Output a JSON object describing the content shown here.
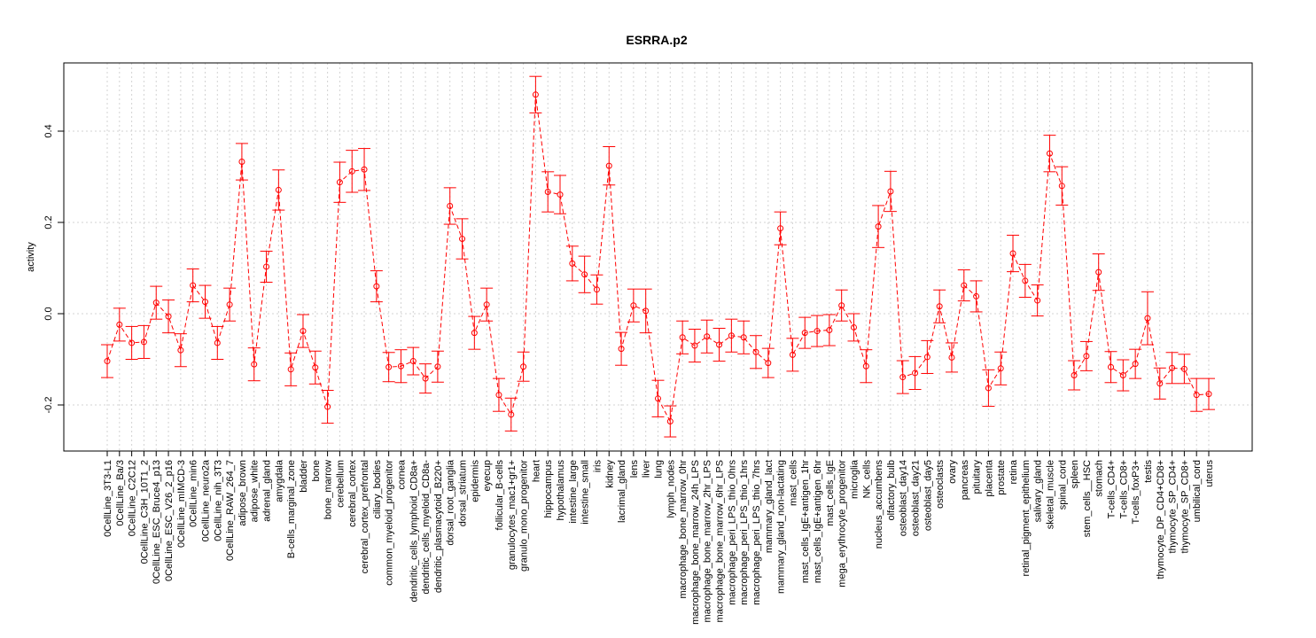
{
  "chart_data": {
    "type": "line",
    "title": "ESRRA.p2",
    "xlabel": "",
    "ylabel": "activity",
    "ylim": [
      -0.3,
      0.55
    ],
    "yticks": [
      -0.2,
      0.0,
      0.2,
      0.4
    ],
    "ytick_labels": [
      "-0.2",
      "0.0",
      "0.2",
      "0.4"
    ],
    "grid": true,
    "color": "#ff0000",
    "grid_color": "#d3d3d3",
    "categories": [
      "0CellLine_3T3-L1",
      "0CellLine_Ba/3",
      "0CellLine_C2C12",
      "0CellLine_C3H_10T1_2",
      "0CellLine_ESC_Bruce4_p13",
      "0CellLine_ESC_V26_2_p16",
      "0CellLine_mIMCD-3",
      "0CellLine_min6",
      "0CellLine_neuro2a",
      "0CellLine_nih_3T3",
      "0CellLine_RAW_264_7",
      "adipose_brown",
      "adipose_white",
      "adrenal_gland",
      "amygdala",
      "B-cells_marginal_zone",
      "bladder",
      "bone",
      "bone_marrow",
      "cerebellum",
      "cerebral_cortex",
      "cerebral_cortex_prefrontal",
      "ciliary_bodies",
      "common_myeloid_progenitor",
      "cornea",
      "dendritic_cells_lymphoid_CD8a+",
      "dendritic_cells_myeloid_CD8a-",
      "dendritic_plasmacytoid_B220+",
      "dorsal_root_ganglia",
      "dorsal_striatum",
      "epidermis",
      "eyecup",
      "follicular_B-cells",
      "granulocytes_mac1+gr1+",
      "granulo_mono_progenitor",
      "heart",
      "hippocampus",
      "hypothalamus",
      "intestine_large",
      "intestine_small",
      "iris",
      "kidney",
      "lacrimal_gland",
      "lens",
      "liver",
      "lung",
      "lymph_nodes",
      "macrophage_bone_marrow_0hr",
      "macrophage_bone_marrow_24h_LPS",
      "macrophage_bone_marrow_2hr_LPS",
      "macrophage_bone_marrow_6hr_LPS",
      "macrophage_peri_LPS_thio_0hrs",
      "macrophage_peri_LPS_thio_1hrs",
      "macrophage_peri_LPS_thio_7hrs",
      "mammary_gland_lact",
      "mammary_gland_non-lactating",
      "mast_cells",
      "mast_cells_IgE+antigen_1hr",
      "mast_cells_IgE+antigen_6hr",
      "mast_cells_IgE",
      "mega_erythrocyte_progenitor",
      "microglia",
      "NK_cells",
      "nucleus_accumbens",
      "olfactory_bulb",
      "osteoblast_day14",
      "osteoblast_day21",
      "osteoblast_day5",
      "osteoclasts",
      "ovary",
      "pancreas",
      "pituitary",
      "placenta",
      "prostate",
      "retina",
      "retinal_pigment_epithelium",
      "salivary_gland",
      "skeletal_muscle",
      "spinal_cord",
      "spleen",
      "stem_cells__HSC",
      "stomach",
      "T-cells_CD4+",
      "T-cells_CD8+",
      "T-cells_foxP3+",
      "testis",
      "thymocyte_DP_CD4+CD8+",
      "thymocyte_SP_CD4+",
      "thymocyte_SP_CD8+",
      "umbilical_cord",
      "uterus"
    ],
    "values": [
      -0.104,
      -0.024,
      -0.064,
      -0.062,
      0.024,
      -0.006,
      -0.08,
      0.062,
      0.026,
      -0.064,
      0.02,
      0.333,
      -0.111,
      0.103,
      0.271,
      -0.122,
      -0.038,
      -0.118,
      -0.204,
      0.288,
      0.312,
      0.316,
      0.06,
      -0.117,
      -0.115,
      -0.104,
      -0.142,
      -0.116,
      0.236,
      0.164,
      -0.042,
      0.02,
      -0.178,
      -0.221,
      -0.116,
      0.48,
      0.267,
      0.261,
      0.11,
      0.086,
      0.053,
      0.324,
      -0.077,
      0.018,
      0.006,
      -0.186,
      -0.236,
      -0.052,
      -0.07,
      -0.05,
      -0.068,
      -0.048,
      -0.052,
      -0.084,
      -0.108,
      0.187,
      -0.09,
      -0.042,
      -0.038,
      -0.036,
      0.018,
      -0.03,
      -0.115,
      0.191,
      0.268,
      -0.139,
      -0.13,
      -0.095,
      0.016,
      -0.096,
      0.062,
      0.038,
      -0.163,
      -0.12,
      0.132,
      0.072,
      0.029,
      0.351,
      0.28,
      -0.135,
      -0.093,
      0.091,
      -0.117,
      -0.135,
      -0.11,
      -0.01,
      -0.153,
      -0.119,
      -0.121,
      -0.178,
      -0.176
    ],
    "errors": [
      0.036,
      0.036,
      0.036,
      0.036,
      0.036,
      0.036,
      0.036,
      0.036,
      0.036,
      0.036,
      0.036,
      0.04,
      0.036,
      0.034,
      0.044,
      0.036,
      0.036,
      0.036,
      0.036,
      0.044,
      0.046,
      0.046,
      0.034,
      0.032,
      0.036,
      0.03,
      0.032,
      0.034,
      0.04,
      0.044,
      0.036,
      0.036,
      0.036,
      0.036,
      0.032,
      0.04,
      0.044,
      0.042,
      0.038,
      0.04,
      0.032,
      0.042,
      0.036,
      0.036,
      0.048,
      0.04,
      0.034,
      0.036,
      0.036,
      0.036,
      0.036,
      0.036,
      0.036,
      0.036,
      0.032,
      0.036,
      0.036,
      0.034,
      0.034,
      0.034,
      0.034,
      0.03,
      0.036,
      0.046,
      0.044,
      0.036,
      0.036,
      0.036,
      0.036,
      0.032,
      0.034,
      0.034,
      0.04,
      0.036,
      0.04,
      0.036,
      0.034,
      0.04,
      0.042,
      0.032,
      0.032,
      0.04,
      0.034,
      0.034,
      0.032,
      0.058,
      0.034,
      0.034,
      0.032,
      0.036,
      0.034
    ]
  }
}
